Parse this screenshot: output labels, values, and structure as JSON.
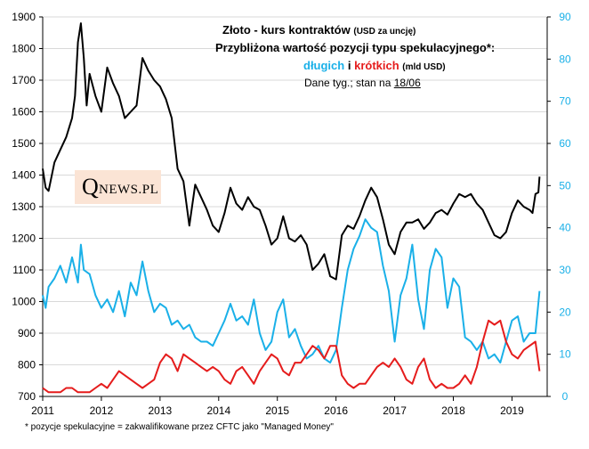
{
  "chart_data": {
    "type": "line",
    "title_main": "Złoto - kurs kontraktów",
    "title_main_note": "(USD za uncję)",
    "title_line2": "Przybliżona wartość pozycji typu spekulacyjnego*:",
    "title_long_word": "długich",
    "title_conj": "i",
    "title_short_word": "krótkich",
    "title_units": "(mld USD)",
    "subtitle_prefix": "Dane tyg.; stan na",
    "subtitle_date": "18/06",
    "footnote": "* pozycje spekulacyjne = zakwalifikowane przez CFTC jako \"Managed Money\"",
    "logo_q": "Q",
    "logo_rest": "NEWS.PL",
    "x_range": [
      2011.0,
      2019.6
    ],
    "x_ticks": [
      2011,
      2012,
      2013,
      2014,
      2015,
      2016,
      2017,
      2018,
      2019
    ],
    "y_left_range": [
      700,
      1900
    ],
    "y_left_ticks": [
      700,
      800,
      900,
      1000,
      1100,
      1200,
      1300,
      1400,
      1500,
      1600,
      1700,
      1800,
      1900
    ],
    "y_right_range": [
      0,
      90
    ],
    "y_right_ticks": [
      0,
      10,
      20,
      30,
      40,
      50,
      60,
      70,
      80,
      90
    ],
    "series": [
      {
        "name": "Złoto - kurs kontraktów (USD za uncję)",
        "axis": "left",
        "color": "#000000",
        "x": [
          2011.0,
          2011.05,
          2011.1,
          2011.2,
          2011.3,
          2011.4,
          2011.5,
          2011.55,
          2011.6,
          2011.65,
          2011.7,
          2011.75,
          2011.8,
          2011.9,
          2012.0,
          2012.1,
          2012.2,
          2012.3,
          2012.4,
          2012.5,
          2012.6,
          2012.7,
          2012.8,
          2012.9,
          2013.0,
          2013.1,
          2013.2,
          2013.3,
          2013.4,
          2013.5,
          2013.6,
          2013.7,
          2013.8,
          2013.9,
          2014.0,
          2014.1,
          2014.2,
          2014.3,
          2014.4,
          2014.5,
          2014.6,
          2014.7,
          2014.8,
          2014.9,
          2015.0,
          2015.1,
          2015.2,
          2015.3,
          2015.4,
          2015.5,
          2015.6,
          2015.7,
          2015.8,
          2015.9,
          2016.0,
          2016.1,
          2016.2,
          2016.3,
          2016.4,
          2016.5,
          2016.6,
          2016.7,
          2016.8,
          2016.9,
          2017.0,
          2017.1,
          2017.2,
          2017.3,
          2017.4,
          2017.5,
          2017.6,
          2017.7,
          2017.8,
          2017.9,
          2018.0,
          2018.1,
          2018.2,
          2018.3,
          2018.4,
          2018.5,
          2018.6,
          2018.7,
          2018.8,
          2018.9,
          2019.0,
          2019.1,
          2019.2,
          2019.3,
          2019.35,
          2019.4,
          2019.45,
          2019.47
        ],
        "values": [
          1420,
          1360,
          1350,
          1440,
          1480,
          1520,
          1580,
          1650,
          1820,
          1880,
          1770,
          1620,
          1720,
          1650,
          1600,
          1740,
          1690,
          1650,
          1580,
          1600,
          1620,
          1770,
          1730,
          1700,
          1680,
          1640,
          1580,
          1420,
          1380,
          1240,
          1370,
          1330,
          1290,
          1240,
          1220,
          1280,
          1360,
          1310,
          1290,
          1330,
          1300,
          1290,
          1240,
          1180,
          1200,
          1270,
          1200,
          1190,
          1210,
          1180,
          1100,
          1120,
          1150,
          1080,
          1070,
          1210,
          1240,
          1230,
          1270,
          1320,
          1360,
          1330,
          1260,
          1180,
          1150,
          1220,
          1250,
          1250,
          1260,
          1230,
          1250,
          1280,
          1290,
          1275,
          1310,
          1340,
          1330,
          1340,
          1310,
          1290,
          1250,
          1210,
          1200,
          1220,
          1280,
          1320,
          1300,
          1290,
          1280,
          1340,
          1345,
          1395
        ]
      },
      {
        "name": "długich (mld USD)",
        "axis": "right",
        "color": "#1ab0e8",
        "x": [
          2011.0,
          2011.05,
          2011.1,
          2011.2,
          2011.3,
          2011.4,
          2011.5,
          2011.6,
          2011.65,
          2011.7,
          2011.8,
          2011.9,
          2012.0,
          2012.1,
          2012.2,
          2012.3,
          2012.4,
          2012.5,
          2012.6,
          2012.7,
          2012.8,
          2012.9,
          2013.0,
          2013.1,
          2013.2,
          2013.3,
          2013.4,
          2013.5,
          2013.6,
          2013.7,
          2013.8,
          2013.9,
          2014.0,
          2014.1,
          2014.2,
          2014.3,
          2014.4,
          2014.5,
          2014.6,
          2014.7,
          2014.8,
          2014.9,
          2015.0,
          2015.1,
          2015.2,
          2015.3,
          2015.4,
          2015.5,
          2015.6,
          2015.7,
          2015.8,
          2015.9,
          2016.0,
          2016.1,
          2016.2,
          2016.3,
          2016.4,
          2016.5,
          2016.6,
          2016.7,
          2016.8,
          2016.9,
          2017.0,
          2017.1,
          2017.2,
          2017.3,
          2017.4,
          2017.5,
          2017.6,
          2017.7,
          2017.8,
          2017.9,
          2018.0,
          2018.1,
          2018.2,
          2018.3,
          2018.4,
          2018.5,
          2018.6,
          2018.7,
          2018.8,
          2018.9,
          2019.0,
          2019.1,
          2019.2,
          2019.3,
          2019.4,
          2019.47
        ],
        "values": [
          24,
          21,
          26,
          28,
          31,
          27,
          33,
          27,
          36,
          30,
          29,
          24,
          21,
          23,
          20,
          25,
          19,
          27,
          24,
          32,
          25,
          20,
          22,
          21,
          17,
          18,
          16,
          17,
          14,
          13,
          13,
          12,
          15,
          18,
          22,
          18,
          19,
          17,
          23,
          15,
          11,
          13,
          20,
          23,
          14,
          16,
          12,
          9,
          10,
          12,
          9,
          8,
          11,
          21,
          30,
          35,
          38,
          42,
          40,
          39,
          31,
          25,
          13,
          24,
          28,
          36,
          23,
          16,
          30,
          35,
          33,
          21,
          28,
          26,
          14,
          13,
          11,
          13,
          9,
          10,
          8,
          13,
          18,
          19,
          13,
          15,
          15,
          25
        ]
      },
      {
        "name": "krótkich (mld USD)",
        "axis": "right",
        "color": "#e51c1c",
        "x": [
          2011.0,
          2011.1,
          2011.2,
          2011.3,
          2011.4,
          2011.5,
          2011.6,
          2011.7,
          2011.8,
          2011.9,
          2012.0,
          2012.1,
          2012.2,
          2012.3,
          2012.4,
          2012.5,
          2012.6,
          2012.7,
          2012.8,
          2012.9,
          2013.0,
          2013.1,
          2013.2,
          2013.3,
          2013.4,
          2013.5,
          2013.6,
          2013.7,
          2013.8,
          2013.9,
          2014.0,
          2014.1,
          2014.2,
          2014.3,
          2014.4,
          2014.5,
          2014.6,
          2014.7,
          2014.8,
          2014.9,
          2015.0,
          2015.1,
          2015.2,
          2015.3,
          2015.4,
          2015.5,
          2015.6,
          2015.7,
          2015.8,
          2015.9,
          2016.0,
          2016.1,
          2016.2,
          2016.3,
          2016.4,
          2016.5,
          2016.6,
          2016.7,
          2016.8,
          2016.9,
          2017.0,
          2017.1,
          2017.2,
          2017.3,
          2017.4,
          2017.5,
          2017.6,
          2017.7,
          2017.8,
          2017.9,
          2018.0,
          2018.1,
          2018.2,
          2018.3,
          2018.4,
          2018.5,
          2018.6,
          2018.7,
          2018.8,
          2018.9,
          2019.0,
          2019.1,
          2019.2,
          2019.3,
          2019.4,
          2019.47
        ],
        "values": [
          2,
          1,
          1,
          1,
          2,
          2,
          1,
          1,
          1,
          2,
          3,
          2,
          4,
          6,
          5,
          4,
          3,
          2,
          3,
          4,
          8,
          10,
          9,
          6,
          10,
          9,
          8,
          7,
          6,
          7,
          6,
          4,
          3,
          6,
          7,
          5,
          3,
          6,
          8,
          10,
          9,
          6,
          5,
          8,
          8,
          10,
          12,
          11,
          9,
          12,
          12,
          5,
          3,
          2,
          3,
          3,
          5,
          7,
          8,
          7,
          9,
          7,
          4,
          3,
          7,
          9,
          4,
          2,
          3,
          2,
          2,
          3,
          5,
          3,
          7,
          13,
          18,
          17,
          18,
          13,
          10,
          9,
          11,
          12,
          13,
          6
        ]
      }
    ]
  }
}
